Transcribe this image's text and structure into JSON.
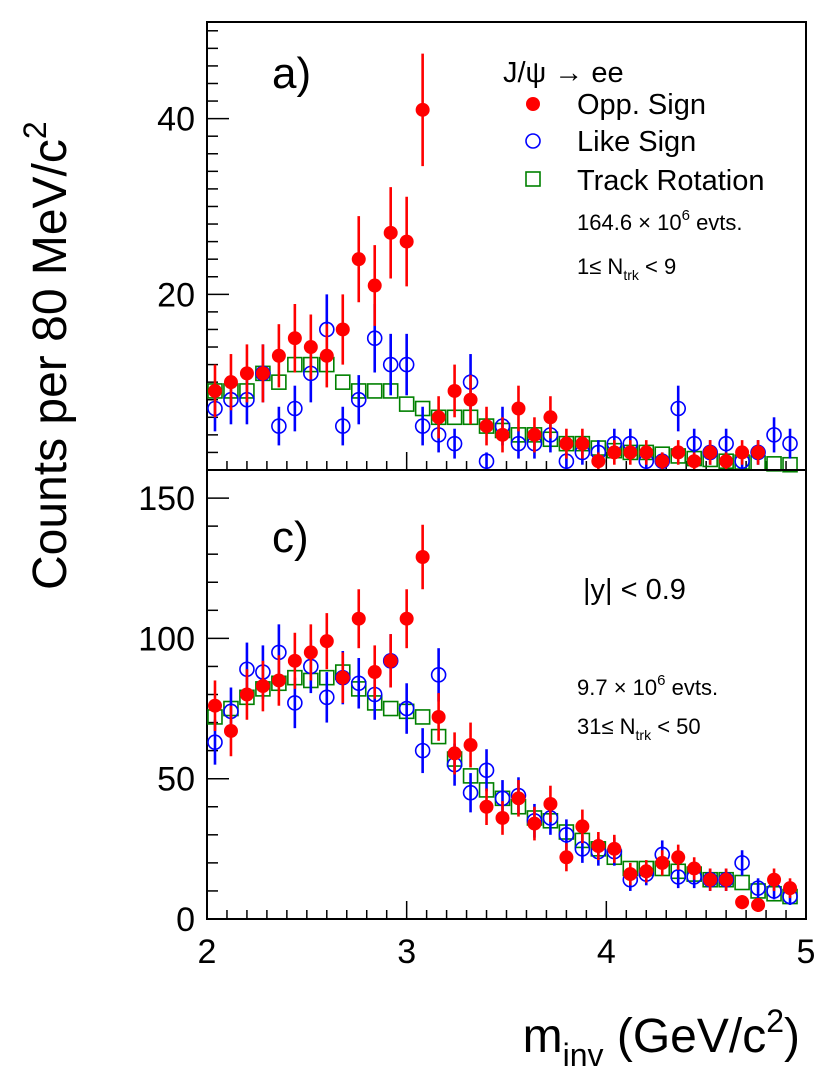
{
  "chart_data": [
    {
      "panel": "a)",
      "type": "scatter",
      "xlabel": "m_inv (GeV/c^2)",
      "ylabel": "Counts per 80 MeV/c^2",
      "xlim": [
        2,
        5
      ],
      "ylim": [
        0,
        51
      ],
      "y_ticks": [
        20,
        40
      ],
      "legend": {
        "header": "J/ψ → ee",
        "entries": [
          "Opp. Sign",
          "Like Sign",
          "Track Rotation"
        ]
      },
      "info": {
        "events": [
          "164.6 × 10",
          "6",
          " evts."
        ],
        "ntrk_lo": "1≤ N",
        "ntrk_sub": "trk",
        "ntrk_hi": " < 9"
      },
      "x": [
        2.04,
        2.12,
        2.2,
        2.28,
        2.36,
        2.44,
        2.52,
        2.6,
        2.68,
        2.76,
        2.84,
        2.92,
        3.0,
        3.08,
        3.16,
        3.24,
        3.32,
        3.4,
        3.48,
        3.56,
        3.64,
        3.72,
        3.8,
        3.88,
        3.96,
        4.04,
        4.12,
        4.2,
        4.28,
        4.36,
        4.44,
        4.52,
        4.6,
        4.68,
        4.76,
        4.84,
        4.92
      ],
      "series": [
        {
          "name": "Opp. Sign",
          "marker": "filled-circle",
          "color": "#ff0000",
          "values": [
            9,
            10,
            11,
            11,
            13,
            15,
            14,
            13,
            16,
            24,
            21,
            27,
            26,
            41,
            6,
            9,
            8,
            5,
            4,
            7,
            4,
            6,
            3,
            3,
            1,
            2,
            2,
            2,
            1,
            2,
            1,
            2,
            1,
            2,
            2,
            0,
            0
          ],
          "errors": [
            3,
            3.2,
            3.3,
            3.3,
            3.6,
            3.9,
            3.7,
            3.6,
            4,
            4.9,
            4.6,
            5.2,
            5.1,
            6.4,
            2.4,
            3,
            2.8,
            2.2,
            2,
            2.6,
            2,
            2.4,
            1.7,
            1.7,
            1,
            1.4,
            1.4,
            1.4,
            1,
            1.4,
            1,
            1.4,
            1,
            1.4,
            1.4,
            0,
            0
          ]
        },
        {
          "name": "Like Sign",
          "marker": "open-circle",
          "color": "#0000ff",
          "values": [
            7,
            8,
            8,
            11,
            5,
            7,
            11,
            16,
            5,
            8,
            15,
            12,
            12,
            5,
            4,
            3,
            10,
            1,
            5,
            3,
            3,
            4,
            1,
            2,
            2,
            3,
            3,
            1,
            1,
            7,
            3,
            2,
            3,
            1,
            2,
            4,
            3
          ],
          "errors": [
            2.6,
            2.8,
            2.8,
            3.3,
            2.2,
            2.6,
            3.3,
            4,
            2.2,
            2.8,
            3.9,
            3.5,
            3.5,
            2.2,
            2,
            1.7,
            3.2,
            1,
            2.2,
            1.7,
            1.7,
            2,
            1,
            1.4,
            1.4,
            1.7,
            1.7,
            1,
            1,
            2.6,
            1.7,
            1.4,
            1.7,
            1,
            1.4,
            2,
            1.7
          ]
        },
        {
          "name": "Track Rotation",
          "marker": "open-square",
          "color": "#008000",
          "values": [
            9,
            9,
            9,
            11,
            10,
            12,
            12,
            12,
            10,
            9,
            9,
            9,
            7.5,
            7,
            6,
            6,
            6,
            5,
            4.5,
            4,
            4,
            3.5,
            3,
            3,
            2.5,
            2.2,
            2,
            2,
            1.8,
            1.6,
            1.3,
            1.2,
            1,
            0.9,
            0.8,
            0.7,
            0.6
          ],
          "errors": []
        }
      ]
    },
    {
      "panel": "c)",
      "type": "scatter",
      "xlabel": "m_inv (GeV/c^2)",
      "ylabel": "Counts per 80 MeV/c^2",
      "xlim": [
        2,
        5
      ],
      "ylim": [
        0,
        160
      ],
      "y_ticks": [
        0,
        50,
        100,
        150
      ],
      "x_ticks": [
        2,
        3,
        4,
        5
      ],
      "rapidity": "|y| < 0.9",
      "info": {
        "events": [
          "9.7 × 10",
          "6",
          " evts."
        ],
        "ntrk_lo": "31≤ N",
        "ntrk_sub": "trk",
        "ntrk_hi": " < 50"
      },
      "x": [
        2.04,
        2.12,
        2.2,
        2.28,
        2.36,
        2.44,
        2.52,
        2.6,
        2.68,
        2.76,
        2.84,
        2.92,
        3.0,
        3.08,
        3.16,
        3.24,
        3.32,
        3.4,
        3.48,
        3.56,
        3.64,
        3.72,
        3.8,
        3.88,
        3.96,
        4.04,
        4.12,
        4.2,
        4.28,
        4.36,
        4.44,
        4.52,
        4.6,
        4.68,
        4.76,
        4.84,
        4.92
      ],
      "series": [
        {
          "name": "Opp. Sign",
          "marker": "filled-circle",
          "color": "#ff0000",
          "values": [
            76,
            67,
            80,
            83,
            85,
            92,
            95,
            99,
            86,
            107,
            88,
            92,
            107,
            129,
            72,
            59,
            62,
            40,
            36,
            43,
            34,
            41,
            22,
            33,
            26,
            25,
            16,
            17,
            20,
            22,
            18,
            14,
            14,
            6,
            5,
            14,
            11
          ],
          "errors": [
            9,
            9,
            9,
            9,
            9,
            10,
            10,
            10,
            9,
            10.5,
            9.5,
            9.5,
            10.5,
            11.5,
            8.5,
            7.5,
            8,
            6.5,
            6,
            6.5,
            6,
            6.5,
            5,
            6,
            5,
            5,
            4,
            4,
            4.5,
            4.5,
            4,
            4,
            4,
            2.5,
            2.5,
            4,
            3.5
          ]
        },
        {
          "name": "Like Sign",
          "marker": "open-circle",
          "color": "#0000ff",
          "values": [
            63,
            74,
            89,
            88,
            95,
            77,
            90,
            79,
            86,
            84,
            80,
            92,
            75,
            60,
            87,
            55,
            45,
            53,
            43,
            44,
            35,
            36,
            30,
            25,
            24,
            24,
            14,
            16,
            23,
            15,
            15,
            14,
            14,
            20,
            11,
            10,
            8
          ],
          "errors": [
            8,
            8.5,
            9.5,
            9.5,
            10,
            9,
            9.5,
            9,
            9.5,
            9,
            9,
            9.5,
            9,
            8,
            9.5,
            7.5,
            7,
            7.5,
            6.5,
            6.5,
            6,
            6,
            5.5,
            5,
            5,
            5,
            4,
            4,
            5,
            4,
            4,
            4,
            4,
            4.5,
            3.5,
            3,
            3
          ]
        },
        {
          "name": "Track Rotation",
          "marker": "open-square",
          "color": "#008000",
          "values": [
            72,
            75,
            79,
            82,
            84,
            86,
            85,
            86,
            88,
            82,
            77,
            75,
            74,
            72,
            65,
            57,
            51,
            46,
            43,
            40,
            36,
            35,
            31,
            28,
            25,
            22,
            18,
            18,
            18,
            17,
            16,
            14,
            14,
            13,
            10,
            9,
            8
          ],
          "errors": []
        }
      ]
    }
  ]
}
